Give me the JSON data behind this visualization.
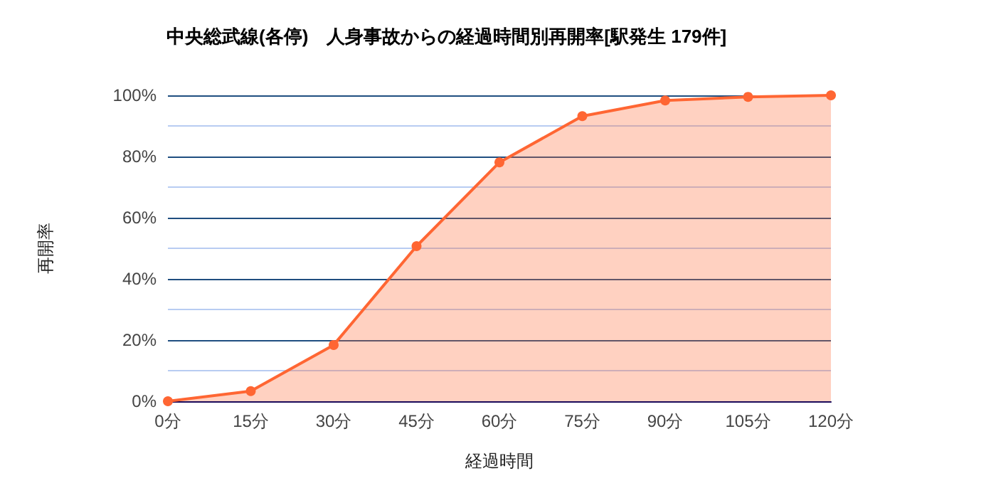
{
  "chart_data": {
    "type": "area",
    "title": "中央総武線(各停)　人身事故からの経過時間別再開率[駅発生 179件]",
    "xlabel": "経過時間",
    "ylabel": "再開率",
    "categories": [
      "0分",
      "15分",
      "30分",
      "45分",
      "60分",
      "75分",
      "90分",
      "105分",
      "120分"
    ],
    "series": [
      {
        "color": "#ff6633",
        "values": [
          0,
          3.3,
          18.4,
          50.7,
          78.1,
          93.2,
          98.3,
          99.5,
          100
        ]
      }
    ],
    "ylim": [
      0,
      100
    ],
    "yticks": [
      {
        "value": 0,
        "label": "0%"
      },
      {
        "value": 10,
        "label": null
      },
      {
        "value": 20,
        "label": "20%"
      },
      {
        "value": 30,
        "label": null
      },
      {
        "value": 40,
        "label": "40%"
      },
      {
        "value": 50,
        "label": null
      },
      {
        "value": 60,
        "label": "60%"
      },
      {
        "value": 70,
        "label": null
      },
      {
        "value": 80,
        "label": "80%"
      },
      {
        "value": 90,
        "label": null
      },
      {
        "value": 100,
        "label": "100%"
      }
    ],
    "grid": "y",
    "marker": "circle"
  }
}
